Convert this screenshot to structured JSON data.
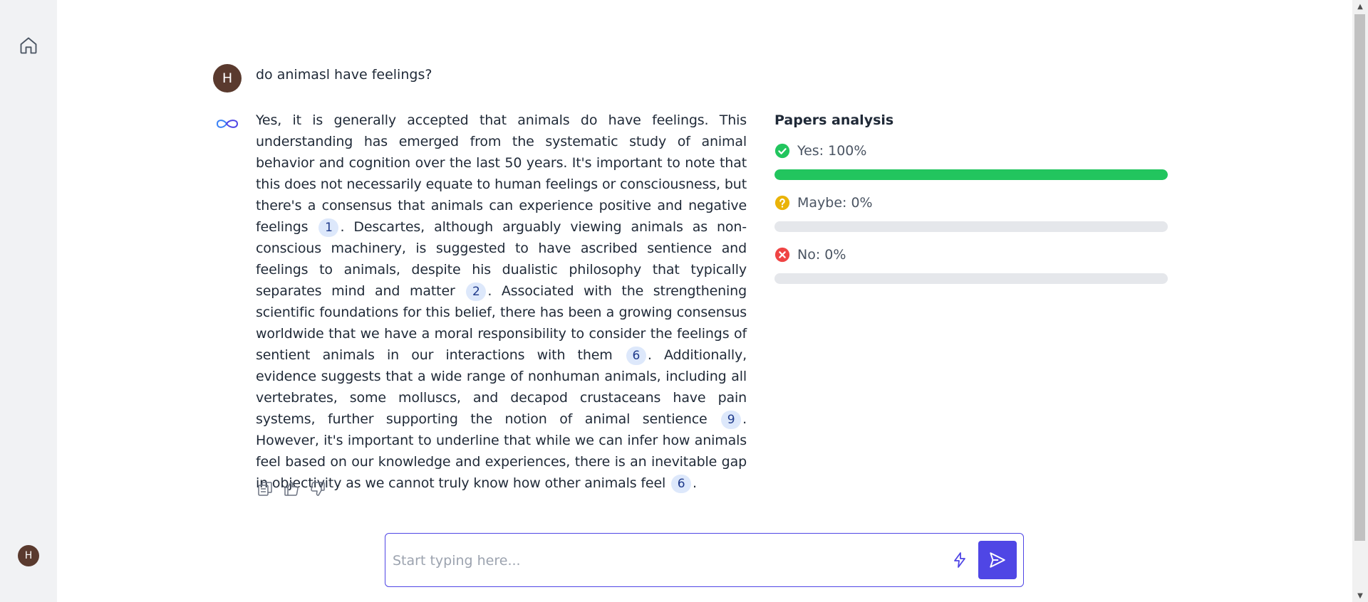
{
  "sidebar": {
    "home_icon": "home-icon",
    "user_initial": "H"
  },
  "conversation": {
    "user": {
      "initial": "H",
      "message": "do animasl have feelings?"
    },
    "assistant": {
      "icon": "infinity-loop-icon",
      "segments": [
        {
          "text": "Yes, it is generally accepted that animals do have feelings. This understanding has emerged from the systematic study of animal behavior and cognition over the last 50 years. It's important to note that this does not necessarily equate to human feelings or consciousness, but there's a consensus that animals can experience positive and negative feelings "
        },
        {
          "cite": "1"
        },
        {
          "text": ". Descartes, although arguably viewing animals as non-conscious machinery, is suggested to have ascribed sentience and feelings to animals, despite his dualistic philosophy that typically separates mind and matter "
        },
        {
          "cite": "2"
        },
        {
          "text": ". Associated with the strengthening scientific foundations for this belief, there has been a growing consensus worldwide that we have a moral responsibility to consider the feelings of sentient animals in our interactions with them "
        },
        {
          "cite": "6"
        },
        {
          "text": ". Additionally, evidence suggests that a wide range of nonhuman animals, including all vertebrates, some molluscs, and decapod crustaceans have pain systems, further supporting the notion of animal sentience "
        },
        {
          "cite": "9"
        },
        {
          "text": ". However, it's important to underline that while we can infer how animals feel based on our knowledge and experiences, there is an inevitable gap in objectivity as we cannot truly know how other animals feel "
        },
        {
          "cite": "6"
        },
        {
          "text": "."
        }
      ],
      "actions": [
        "copy-icon",
        "thumbs-up-icon",
        "thumbs-down-icon"
      ]
    }
  },
  "papers_analysis": {
    "title": "Papers analysis",
    "rows": [
      {
        "label": "Yes: 100%",
        "value": 1.0,
        "icon": "check-circle-icon",
        "color": "#22c55e"
      },
      {
        "label": "Maybe: 0%",
        "value": 0.0,
        "icon": "question-circle-icon",
        "color": "#eab308"
      },
      {
        "label": "No: 0%",
        "value": 0.0,
        "icon": "x-circle-icon",
        "color": "#ef4444"
      }
    ],
    "bar_color": "#22c55e",
    "track_color": "#e5e7eb"
  },
  "composer": {
    "placeholder": "Start typing here...",
    "value": "",
    "bolt_icon": "bolt-icon",
    "send_icon": "send-icon",
    "accent": "#4f46e5"
  }
}
